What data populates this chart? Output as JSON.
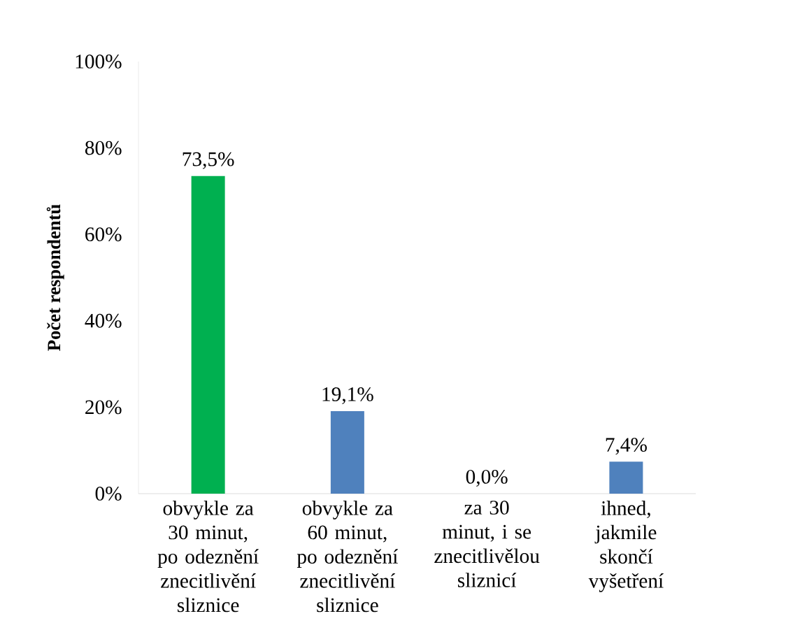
{
  "chart_data": {
    "type": "bar",
    "ylabel": "Počet respondentů",
    "categories": [
      "obvykle za 30 minut, po odeznění znecitlivění sliznice",
      "obvykle za 60 minut, po odeznění znecitlivění sliznice",
      "za 30 minut, i se znecitlivělou sliznicí",
      "ihned, jakmile skončí vyšetření"
    ],
    "values": [
      73.5,
      19.1,
      0.0,
      7.4
    ],
    "colors": [
      "#00b050",
      "#4f81bd",
      "#4f81bd",
      "#4f81bd"
    ],
    "value_labels": [
      "73,5%",
      "19,1%",
      "0,0%",
      "7,4%"
    ],
    "ylim": [
      0,
      100
    ],
    "yticks": [
      {
        "value": 0,
        "label": "0%"
      },
      {
        "value": 20,
        "label": "20%"
      },
      {
        "value": 40,
        "label": "40%"
      },
      {
        "value": 60,
        "label": "60%"
      },
      {
        "value": 80,
        "label": "80%"
      },
      {
        "value": 100,
        "label": "100%"
      }
    ]
  }
}
